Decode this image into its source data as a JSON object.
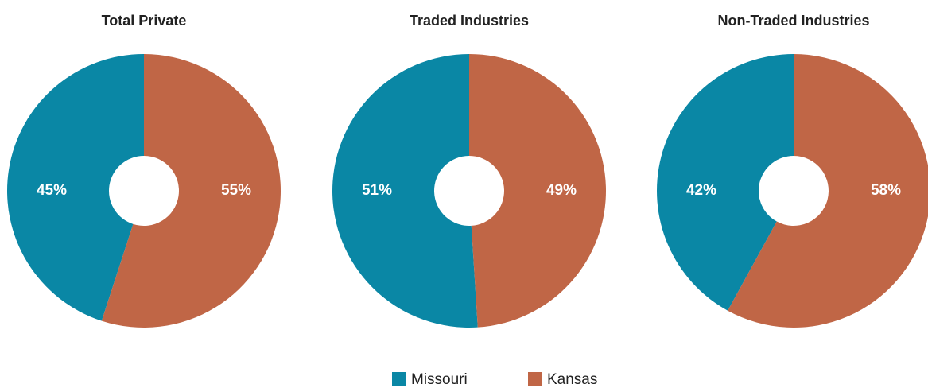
{
  "chart_data": [
    {
      "type": "pie",
      "title": "Total Private",
      "values": [
        45,
        55
      ],
      "value_labels": [
        "45%",
        "55%"
      ]
    },
    {
      "type": "pie",
      "title": "Traded Industries",
      "values": [
        51,
        49
      ],
      "value_labels": [
        "51%",
        "49%"
      ]
    },
    {
      "type": "pie",
      "title": "Non-Traded Industries",
      "values": [
        42,
        58
      ],
      "value_labels": [
        "42%",
        "58%"
      ]
    }
  ],
  "legend": [
    {
      "name": "Missouri",
      "color": "#0a87a5"
    },
    {
      "name": "Kansas",
      "color": "#c06646"
    }
  ]
}
